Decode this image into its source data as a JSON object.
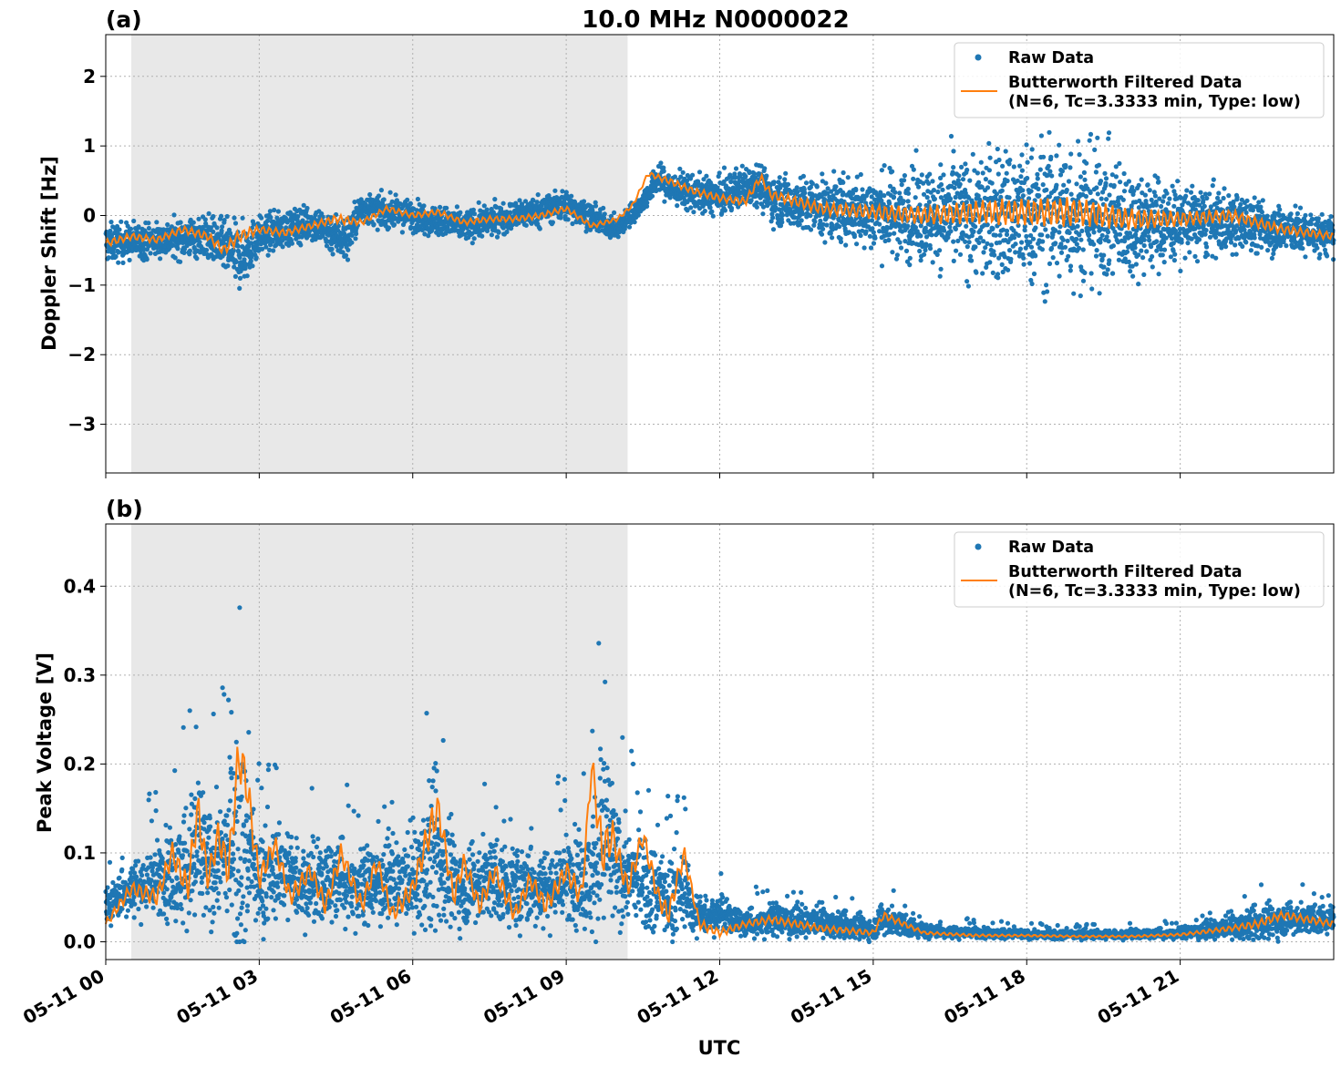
{
  "figure": {
    "title": "10.0 MHz N0000022",
    "xlabel": "UTC",
    "xticks": [
      "05-11 00",
      "05-11 03",
      "05-11 06",
      "05-11 09",
      "05-11 12",
      "05-11 15",
      "05-11 18",
      "05-11 21"
    ],
    "colors": {
      "raw": "#1f77b4",
      "filtered": "#ff7f0e",
      "shade": "#e8e8e8",
      "grid": "#b0b0b0"
    }
  },
  "chart_data": [
    {
      "type": "scatter",
      "panel_label": "(a)",
      "ylabel": "Doppler Shift [Hz]",
      "xlim_hours": [
        0,
        24
      ],
      "ylim": [
        -3.7,
        2.6
      ],
      "yticks": [
        2,
        1,
        0,
        -1,
        -2,
        -3
      ],
      "ytick_labels": [
        "2",
        "1",
        "0",
        "−1",
        "−2",
        "−3"
      ],
      "grid": true,
      "legend_position": "top-right",
      "shaded_interval_hours": [
        0.5,
        10.2
      ],
      "series": [
        {
          "name": "Raw Data",
          "kind": "points",
          "x_hours": [
            0,
            1,
            2,
            2.5,
            2.65,
            3,
            4,
            4.7,
            5,
            6,
            7,
            8,
            9,
            10,
            10.5,
            10.8,
            11,
            12,
            12.7,
            13,
            14,
            15,
            16,
            17,
            17.5,
            18,
            18.8,
            19,
            20,
            21,
            22,
            23,
            24
          ],
          "center": [
            -0.4,
            -0.35,
            -0.3,
            -0.55,
            -0.6,
            -0.3,
            -0.1,
            -0.35,
            0.1,
            0.0,
            -0.15,
            0.0,
            0.15,
            -0.2,
            0.2,
            0.55,
            0.4,
            0.25,
            0.5,
            0.25,
            0.1,
            0.05,
            0.0,
            0.0,
            0.0,
            0.0,
            0.05,
            0.05,
            -0.1,
            -0.1,
            -0.1,
            -0.2,
            -0.3
          ],
          "spread": [
            0.45,
            0.4,
            0.5,
            0.7,
            0.75,
            0.45,
            0.4,
            0.55,
            0.35,
            0.35,
            0.35,
            0.35,
            0.35,
            0.25,
            0.25,
            0.35,
            0.4,
            0.45,
            0.5,
            0.55,
            0.7,
            0.9,
            1.1,
            1.4,
            1.6,
            1.6,
            1.8,
            1.7,
            1.3,
            0.9,
            0.7,
            0.55,
            0.45
          ]
        },
        {
          "name": "Butterworth Filtered Data",
          "subname": "(N=6, Tc=3.3333 min, Type: low)",
          "kind": "line",
          "x_hours": [
            0,
            0.5,
            1,
            1.5,
            2,
            2.3,
            2.6,
            3,
            3.5,
            4,
            4.5,
            5,
            5.5,
            6,
            6.5,
            7,
            7.5,
            8,
            8.5,
            9,
            9.5,
            10,
            10.3,
            10.6,
            11,
            11.5,
            12,
            12.5,
            12.8,
            13,
            14,
            15,
            16,
            17,
            18,
            19,
            20,
            21,
            22,
            23,
            24
          ],
          "y": [
            -0.4,
            -0.3,
            -0.35,
            -0.2,
            -0.3,
            -0.5,
            -0.3,
            -0.2,
            -0.25,
            -0.15,
            -0.05,
            -0.1,
            0.1,
            0.0,
            0.05,
            -0.1,
            -0.05,
            -0.05,
            0.0,
            0.1,
            -0.15,
            -0.05,
            0.15,
            0.6,
            0.5,
            0.35,
            0.25,
            0.2,
            0.55,
            0.3,
            0.1,
            0.05,
            0.0,
            0.05,
            0.05,
            0.05,
            -0.05,
            -0.05,
            0.0,
            -0.2,
            -0.3
          ]
        }
      ]
    },
    {
      "type": "scatter",
      "panel_label": "(b)",
      "ylabel": "Peak Voltage [V]",
      "xlim_hours": [
        0,
        24
      ],
      "ylim": [
        -0.02,
        0.47
      ],
      "yticks": [
        0.4,
        0.3,
        0.2,
        0.1,
        0.0
      ],
      "ytick_labels": [
        "0.4",
        "0.3",
        "0.2",
        "0.1",
        "0.0"
      ],
      "grid": true,
      "legend_position": "top-right",
      "shaded_interval_hours": [
        0.5,
        10.2
      ],
      "series": [
        {
          "name": "Raw Data",
          "kind": "points",
          "x_hours": [
            0,
            0.5,
            1,
            1.5,
            1.8,
            2,
            2.3,
            2.6,
            2.7,
            3,
            3.5,
            4,
            4.5,
            5,
            5.5,
            6,
            6.4,
            6.6,
            7,
            7.5,
            8,
            8.5,
            9,
            9.5,
            9.7,
            10,
            10.5,
            11,
            11.3,
            11.5,
            12,
            12.5,
            13,
            14,
            15,
            15.2,
            16,
            17,
            18,
            19,
            20,
            21,
            22,
            22.5,
            23,
            24
          ],
          "center": [
            0.04,
            0.06,
            0.07,
            0.08,
            0.1,
            0.08,
            0.1,
            0.12,
            0.11,
            0.07,
            0.08,
            0.06,
            0.07,
            0.06,
            0.07,
            0.06,
            0.1,
            0.08,
            0.06,
            0.07,
            0.06,
            0.06,
            0.07,
            0.07,
            0.12,
            0.08,
            0.07,
            0.05,
            0.06,
            0.03,
            0.03,
            0.02,
            0.025,
            0.02,
            0.015,
            0.025,
            0.012,
            0.01,
            0.008,
            0.008,
            0.008,
            0.01,
            0.015,
            0.02,
            0.025,
            0.025
          ],
          "spread": [
            0.03,
            0.05,
            0.07,
            0.1,
            0.15,
            0.1,
            0.12,
            0.2,
            0.18,
            0.09,
            0.08,
            0.07,
            0.08,
            0.07,
            0.07,
            0.08,
            0.15,
            0.1,
            0.07,
            0.08,
            0.07,
            0.07,
            0.08,
            0.1,
            0.2,
            0.1,
            0.08,
            0.08,
            0.07,
            0.04,
            0.03,
            0.025,
            0.03,
            0.025,
            0.02,
            0.03,
            0.012,
            0.01,
            0.008,
            0.008,
            0.008,
            0.01,
            0.02,
            0.03,
            0.03,
            0.025
          ]
        },
        {
          "name": "Butterworth Filtered Data",
          "subname": "(N=6, Tc=3.3333 min, Type: low)",
          "kind": "line",
          "x_hours": [
            0,
            0.5,
            1,
            1.3,
            1.6,
            1.8,
            2,
            2.2,
            2.4,
            2.6,
            2.75,
            3,
            3.3,
            3.6,
            4,
            4.3,
            4.6,
            5,
            5.3,
            5.6,
            6,
            6.3,
            6.5,
            6.8,
            7,
            7.3,
            7.6,
            8,
            8.3,
            8.6,
            9,
            9.3,
            9.5,
            9.7,
            9.9,
            10.2,
            10.5,
            10.8,
            11,
            11.3,
            11.6,
            12,
            12.5,
            13,
            14,
            15,
            15.2,
            16,
            17,
            18,
            19,
            20,
            21,
            22,
            22.5,
            23,
            24
          ],
          "y": [
            0.02,
            0.06,
            0.05,
            0.1,
            0.06,
            0.15,
            0.07,
            0.12,
            0.08,
            0.21,
            0.18,
            0.07,
            0.11,
            0.05,
            0.08,
            0.04,
            0.1,
            0.04,
            0.09,
            0.03,
            0.06,
            0.12,
            0.15,
            0.05,
            0.09,
            0.04,
            0.08,
            0.03,
            0.07,
            0.04,
            0.08,
            0.05,
            0.2,
            0.1,
            0.12,
            0.06,
            0.12,
            0.05,
            0.03,
            0.1,
            0.02,
            0.01,
            0.02,
            0.025,
            0.015,
            0.01,
            0.03,
            0.01,
            0.007,
            0.007,
            0.006,
            0.006,
            0.008,
            0.015,
            0.02,
            0.03,
            0.02
          ]
        }
      ]
    }
  ]
}
